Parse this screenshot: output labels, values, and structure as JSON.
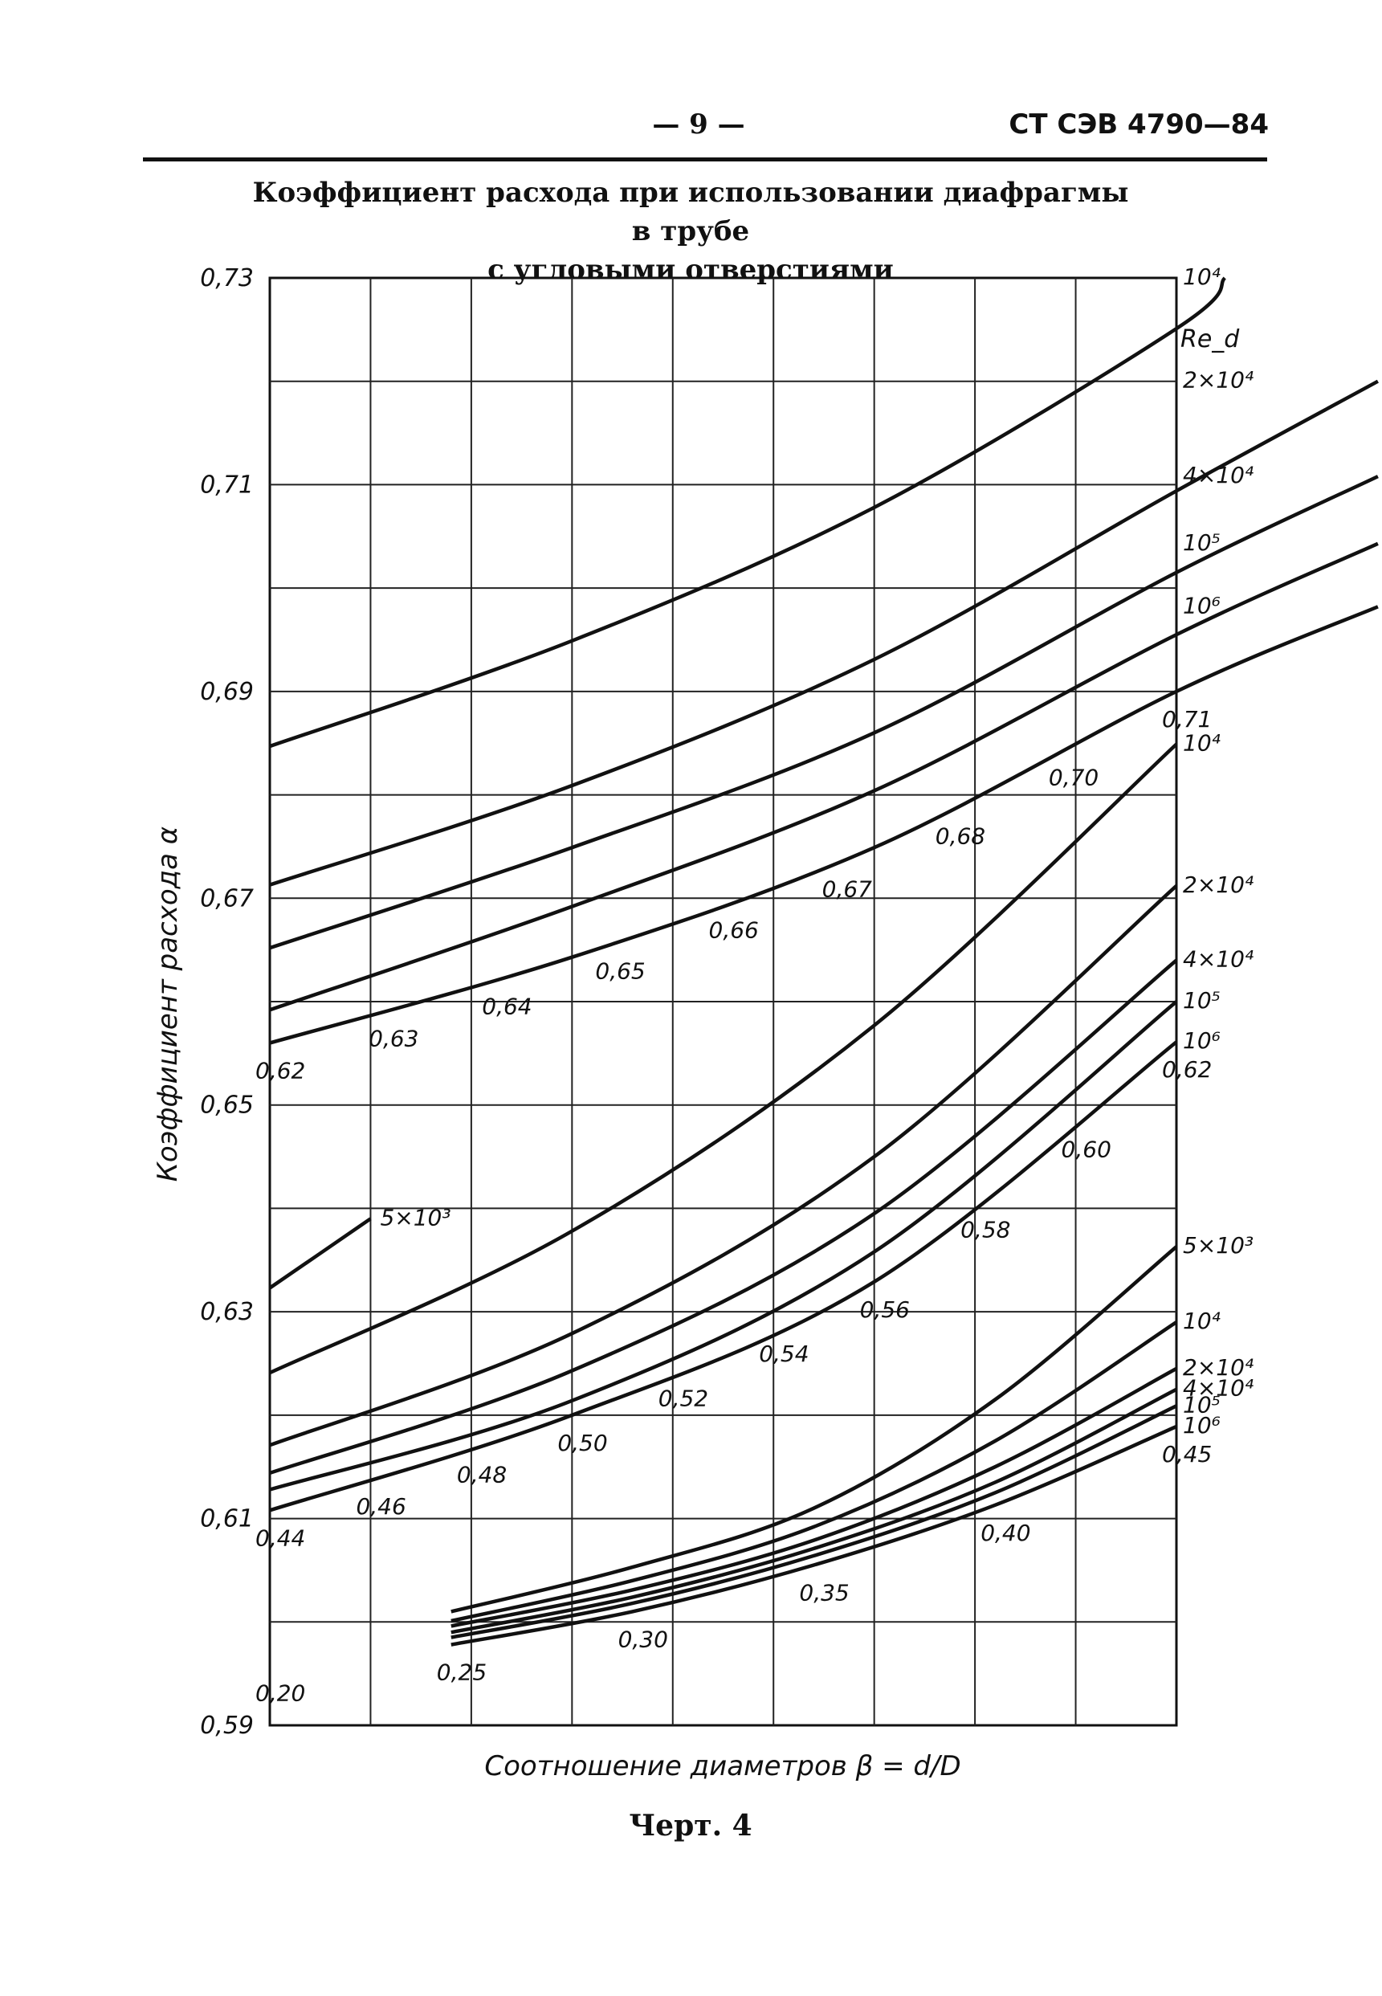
{
  "header": {
    "page_number": "— 9 —",
    "doc_code": "СТ СЭВ 4790—84"
  },
  "title": {
    "line1": "Коэффициент расхода при использовании диафрагмы в трубе",
    "line2": "с угловыми отверстиями"
  },
  "caption": "Черт. 4",
  "chart_data": {
    "type": "line",
    "title": "Коэффициент расхода при использовании диафрагмы в трубе с угловыми отверстиями",
    "xlabel": "Соотношение диаметров β = d/D",
    "ylabel": "Коэффициент расхода α",
    "ylim": [
      0.59,
      0.73
    ],
    "y_ticks": [
      "0,73",
      "0,71",
      "0,69",
      "0,67",
      "0,65",
      "0,63",
      "0,61",
      "0,59"
    ],
    "grid": true,
    "legend_title": "Re_d",
    "panels": [
      {
        "name": "β 0.62–0.71",
        "x_range": [
          0.62,
          0.71
        ],
        "series": [
          {
            "name": "10⁴",
            "x": [
              0.62,
              0.65,
              0.68,
              0.71,
              0.7148
            ],
            "y": [
              0.6847,
              0.6949,
              0.7078,
              0.7251,
              0.73
            ]
          },
          {
            "name": "2×10⁴",
            "x": [
              0.62,
              0.65,
              0.68,
              0.71,
              0.73
            ],
            "y": [
              0.6713,
              0.6809,
              0.6931,
              0.7094,
              0.72
            ]
          },
          {
            "name": "4×10⁴",
            "x": [
              0.62,
              0.65,
              0.68,
              0.71,
              0.73
            ],
            "y": [
              0.6652,
              0.6749,
              0.686,
              0.7015,
              0.7108
            ]
          },
          {
            "name": "10⁵",
            "x": [
              0.62,
              0.65,
              0.68,
              0.71,
              0.73
            ],
            "y": [
              0.6592,
              0.6692,
              0.6804,
              0.6955,
              0.7043
            ]
          },
          {
            "name": "10⁶",
            "x": [
              0.62,
              0.65,
              0.68,
              0.71,
              0.73
            ],
            "y": [
              0.656,
              0.6643,
              0.6749,
              0.69,
              0.6982
            ]
          }
        ],
        "x_tick_labels": [
          "0,62",
          "0,63",
          "0,64",
          "0,65",
          "0,66",
          "0,67",
          "0,68",
          "0,70",
          "0,71"
        ]
      },
      {
        "name": "β 0.44–0.62",
        "x_range": [
          0.44,
          0.62
        ],
        "series": [
          {
            "name": "5×10³",
            "x": [
              0.44,
              0.46
            ],
            "y": [
              0.6323,
              0.639
            ]
          },
          {
            "name": "10⁴",
            "x": [
              0.44,
              0.5,
              0.56,
              0.62
            ],
            "y": [
              0.6241,
              0.6378,
              0.6577,
              0.6849
            ]
          },
          {
            "name": "2×10⁴",
            "x": [
              0.44,
              0.5,
              0.56,
              0.62
            ],
            "y": [
              0.6171,
              0.6279,
              0.645,
              0.6712
            ]
          },
          {
            "name": "4×10⁴",
            "x": [
              0.44,
              0.5,
              0.56,
              0.62
            ],
            "y": [
              0.6144,
              0.6243,
              0.6395,
              0.664
            ]
          },
          {
            "name": "10⁵",
            "x": [
              0.44,
              0.5,
              0.56,
              0.62
            ],
            "y": [
              0.6128,
              0.6214,
              0.6358,
              0.66
            ]
          },
          {
            "name": "10⁶",
            "x": [
              0.44,
              0.5,
              0.56,
              0.62
            ],
            "y": [
              0.6108,
              0.62,
              0.6329,
              0.6561
            ]
          }
        ],
        "x_tick_labels": [
          "0,44",
          "0,46",
          "0,48",
          "0,50",
          "0,52",
          "0,54",
          "0,56",
          "0,58",
          "0,60",
          "0,62"
        ]
      },
      {
        "name": "β 0.20–0.45",
        "x_range": [
          0.2,
          0.45
        ],
        "series": [
          {
            "name": "5×10³",
            "x": [
              0.25,
              0.3,
              0.35,
              0.4,
              0.45
            ],
            "y": [
              0.601,
              0.6053,
              0.611,
              0.6215,
              0.6363
            ]
          },
          {
            "name": "10⁴",
            "x": [
              0.25,
              0.3,
              0.35,
              0.4,
              0.45
            ],
            "y": [
              0.6001,
              0.604,
              0.6092,
              0.6175,
              0.629
            ]
          },
          {
            "name": "2×10⁴",
            "x": [
              0.25,
              0.3,
              0.35,
              0.4,
              0.45
            ],
            "y": [
              0.5996,
              0.6031,
              0.6079,
              0.615,
              0.6245
            ]
          },
          {
            "name": "4×10⁴",
            "x": [
              0.25,
              0.3,
              0.35,
              0.4,
              0.45
            ],
            "y": [
              0.599,
              0.6024,
              0.6071,
              0.6135,
              0.6225
            ]
          },
          {
            "name": "10⁵",
            "x": [
              0.25,
              0.3,
              0.35,
              0.4,
              0.45
            ],
            "y": [
              0.5985,
              0.6018,
              0.6064,
              0.6125,
              0.6209
            ]
          },
          {
            "name": "10⁶",
            "x": [
              0.25,
              0.3,
              0.35,
              0.4,
              0.45
            ],
            "y": [
              0.5978,
              0.601,
              0.6055,
              0.6113,
              0.6189
            ]
          }
        ],
        "x_tick_labels": [
          "0,20",
          "0,25",
          "0,30",
          "0,35",
          "0,40",
          "0,45"
        ]
      }
    ]
  }
}
